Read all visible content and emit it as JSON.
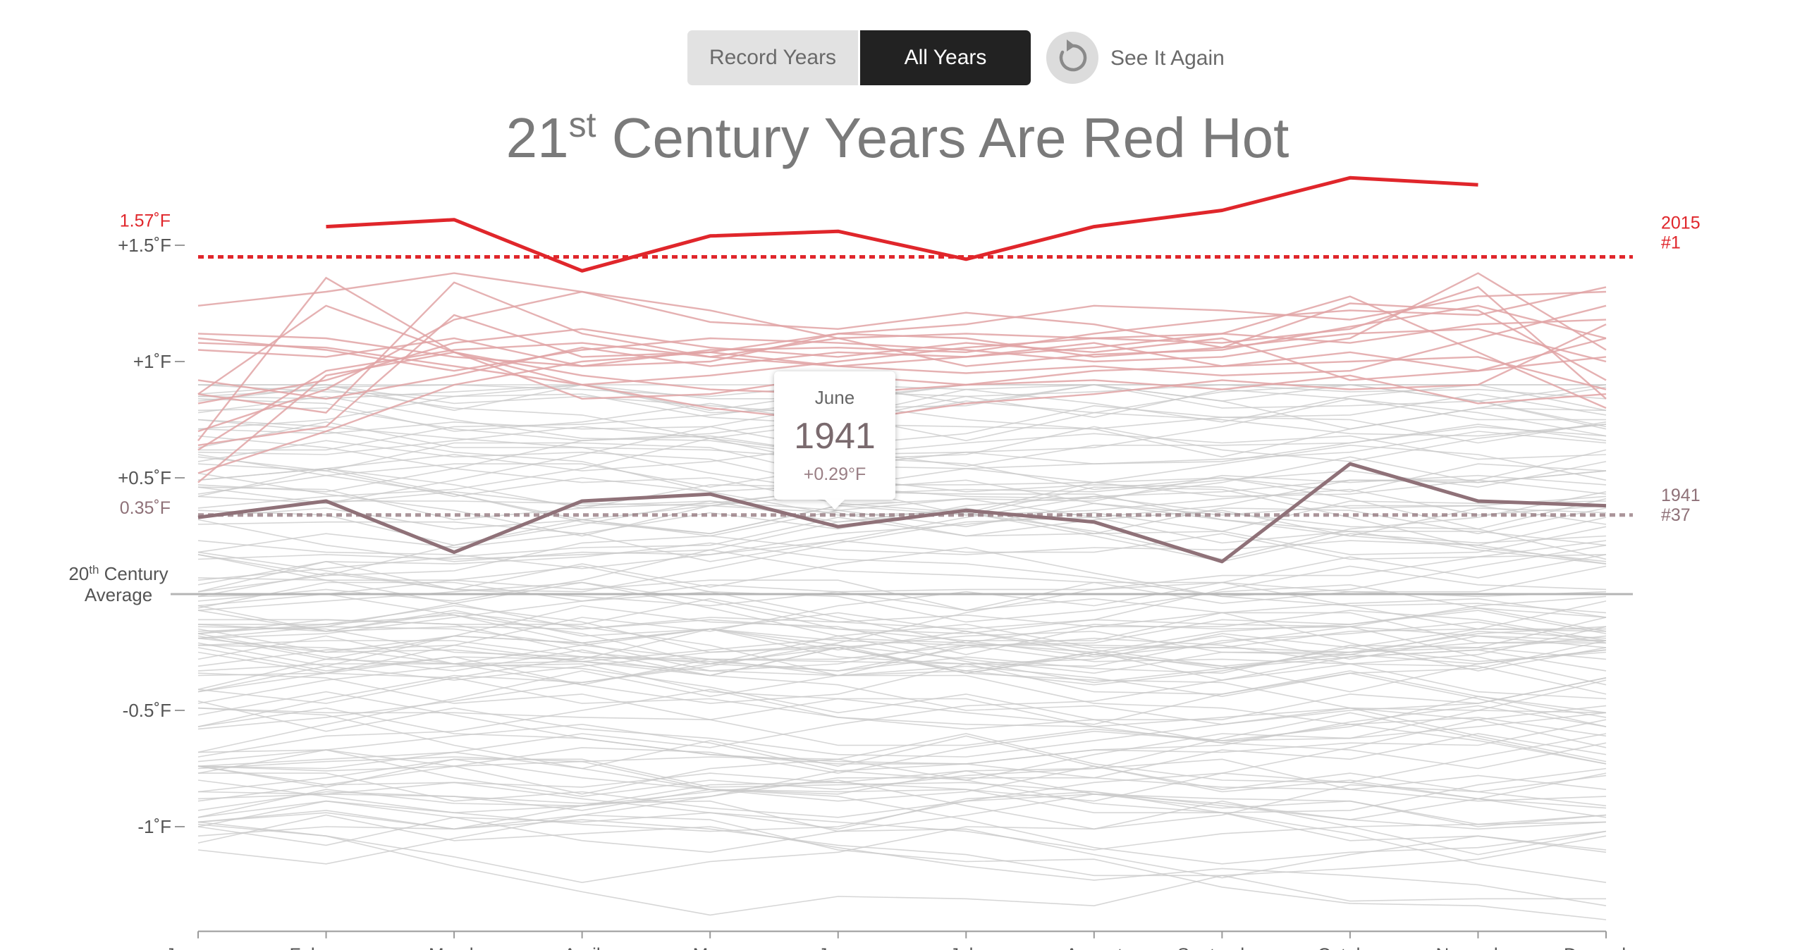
{
  "controls": {
    "record_years_label": "Record Years",
    "all_years_label": "All Years",
    "see_it_again_label": "See It Again"
  },
  "title": {
    "number": "21",
    "suffix": "st",
    "rest": " Century Years Are Red Hot"
  },
  "tooltip": {
    "month": "June",
    "year": "1941",
    "value": "+0.29°F"
  },
  "colors": {
    "highlight_red": "#e0262b",
    "highlight_mauve": "#8f7178",
    "recent_years": "#e0a3a5",
    "other_years": "#c8c8c8",
    "axis": "#9a9a9a",
    "zero_line": "#b5b5b5"
  },
  "chart_data": {
    "type": "line",
    "title": "21st Century Years Are Red Hot",
    "x": [
      "January",
      "February",
      "March",
      "April",
      "May",
      "June",
      "July",
      "August",
      "September",
      "October",
      "November",
      "December"
    ],
    "ylim": [
      -1.45,
      1.75
    ],
    "y_unit": "°F",
    "y_ticks": [
      {
        "value": 1.5,
        "label": "+1.5˚F"
      },
      {
        "value": 1.0,
        "label": "+1˚F"
      },
      {
        "value": 0.5,
        "label": "+0.5˚F"
      },
      {
        "value": -0.5,
        "label": "-0.5˚F"
      },
      {
        "value": -1.0,
        "label": "-1˚F"
      }
    ],
    "zero_line_label": [
      "20",
      "th",
      " Century",
      "Average"
    ],
    "grid": false,
    "highlighted_series": [
      {
        "name": "2015",
        "rank_label": "#1",
        "marker_label": "1.57˚F",
        "marker_value": 1.45,
        "color": "#e0262b",
        "values": [
          null,
          1.58,
          1.61,
          1.39,
          1.54,
          1.56,
          1.44,
          1.58,
          1.65,
          1.79,
          1.76,
          null
        ]
      },
      {
        "name": "1941",
        "rank_label": "#37",
        "marker_label": "0.35˚F",
        "marker_value": 0.34,
        "color": "#8f7178",
        "values": [
          0.33,
          0.4,
          0.18,
          0.4,
          0.43,
          0.29,
          0.36,
          0.31,
          0.14,
          0.56,
          0.4,
          0.38
        ]
      }
    ],
    "recent_series": [
      {
        "values": [
          1.24,
          1.3,
          1.38,
          1.3,
          1.17,
          1.14,
          1.21,
          1.16,
          1.06,
          1.25,
          1.22,
          0.92
        ]
      },
      {
        "values": [
          1.05,
          1.02,
          1.1,
          0.98,
          1.0,
          1.12,
          1.16,
          1.24,
          1.22,
          1.18,
          1.28,
          1.3
        ]
      },
      {
        "values": [
          1.1,
          1.05,
          0.96,
          1.05,
          1.1,
          1.08,
          1.05,
          1.0,
          1.02,
          1.1,
          1.38,
          1.05
        ]
      },
      {
        "values": [
          0.86,
          0.78,
          1.34,
          1.12,
          1.02,
          1.1,
          1.12,
          1.1,
          1.08,
          1.14,
          1.32,
          0.84
        ]
      },
      {
        "values": [
          0.62,
          0.96,
          1.05,
          1.08,
          1.02,
          0.98,
          0.95,
          0.98,
          0.94,
          0.96,
          1.1,
          1.24
        ]
      },
      {
        "values": [
          0.82,
          0.92,
          1.08,
          1.14,
          1.06,
          1.02,
          1.08,
          1.04,
          1.1,
          0.92,
          0.96,
          1.1
        ]
      },
      {
        "values": [
          1.12,
          1.1,
          1.02,
          0.98,
          1.05,
          1.06,
          1.04,
          1.12,
          1.18,
          1.22,
          1.2,
          1.32
        ]
      },
      {
        "values": [
          0.7,
          0.88,
          1.18,
          1.3,
          1.22,
          1.1,
          0.98,
          1.03,
          1.05,
          1.15,
          1.24,
          1.1
        ]
      },
      {
        "values": [
          0.86,
          1.24,
          1.04,
          0.94,
          0.88,
          0.86,
          0.9,
          0.96,
          0.98,
          1.0,
          1.02,
          0.88
        ]
      },
      {
        "values": [
          0.64,
          0.72,
          1.2,
          1.02,
          1.04,
          0.98,
          1.02,
          1.06,
          1.12,
          1.28,
          1.04,
          0.8
        ]
      },
      {
        "values": [
          0.48,
          0.94,
          1.04,
          0.84,
          0.86,
          0.94,
          0.9,
          0.92,
          0.88,
          0.94,
          0.82,
          0.86
        ]
      },
      {
        "values": [
          1.08,
          1.06,
          0.98,
          0.9,
          0.94,
          1.0,
          1.06,
          1.1,
          1.12,
          1.08,
          1.16,
          1.18
        ]
      },
      {
        "values": [
          0.92,
          0.84,
          0.94,
          1.06,
          0.98,
          1.04,
          1.02,
          1.08,
          0.98,
          1.04,
          0.96,
          1.02
        ]
      },
      {
        "values": [
          0.52,
          0.7,
          0.9,
          1.0,
          1.04,
          1.12,
          1.1,
          1.02,
          1.06,
          1.12,
          1.14,
          1.0
        ]
      },
      {
        "values": [
          0.66,
          1.36,
          1.04,
          0.9,
          0.8,
          0.74,
          0.82,
          0.86,
          0.92,
          0.88,
          0.9,
          1.16
        ]
      }
    ],
    "other_series_count": 120,
    "other_series_range": [
      -1.05,
      0.9
    ]
  }
}
